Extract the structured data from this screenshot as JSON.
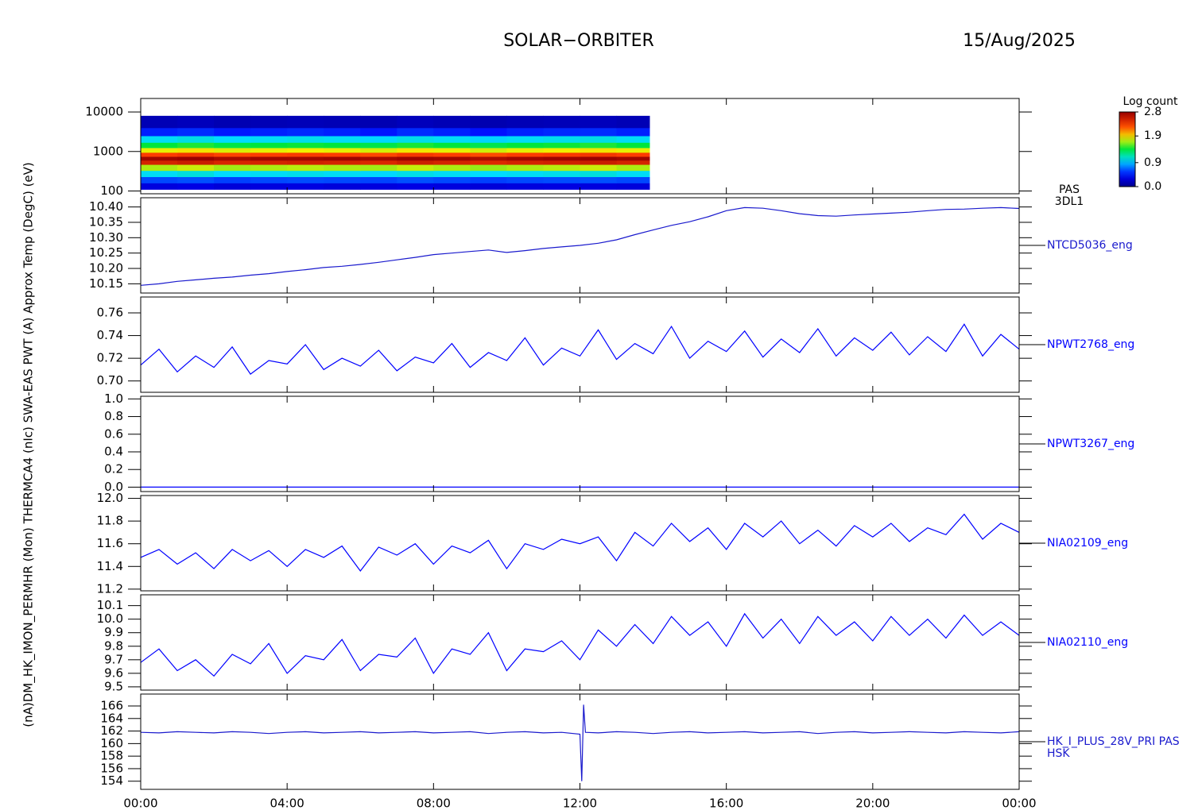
{
  "header": {
    "title": "SOLAR−ORBITER",
    "date": "15/Aug/2025"
  },
  "ylabel": "(nA)DM_HK_IMON_PERMHR (Mon) THERMCA4 (nIc) SWA-EAS PWT (A) Approx Temp (DegC) (eV)",
  "xlim": [
    0,
    24
  ],
  "xticks": [
    {
      "value": 0,
      "label": "00:00"
    },
    {
      "value": 4,
      "label": "04:00"
    },
    {
      "value": 8,
      "label": "08:00"
    },
    {
      "value": 12,
      "label": "12:00"
    },
    {
      "value": 16,
      "label": "16:00"
    },
    {
      "value": 20,
      "label": "20:00"
    },
    {
      "value": 24,
      "label": "00:00"
    }
  ],
  "x": [
    0,
    0.5,
    1,
    1.5,
    2,
    2.5,
    3,
    3.5,
    4,
    4.5,
    5,
    5.5,
    6,
    6.5,
    7,
    7.5,
    8,
    8.5,
    9,
    9.5,
    10,
    10.5,
    11,
    11.5,
    12,
    12.5,
    13,
    13.5,
    14,
    14.5,
    15,
    15.5,
    16,
    16.5,
    17,
    17.5,
    18,
    18.5,
    19,
    19.5,
    20,
    20.5,
    21,
    21.5,
    22,
    22.5,
    23,
    23.5,
    24
  ],
  "chart_data": [
    {
      "type": "heatmap",
      "labels": [
        "PAS",
        "3DL1"
      ],
      "log_y": true,
      "ylim": [
        85,
        22000
      ],
      "yticks": [
        100,
        1000,
        10000
      ],
      "x_bins": [
        0,
        1,
        2,
        3,
        4,
        5,
        6,
        7,
        8,
        9,
        10,
        11,
        12,
        13,
        13.9
      ],
      "y_bins": [
        110,
        160,
        230,
        330,
        470,
        600,
        750,
        950,
        1250,
        1700,
        2500,
        4000,
        8000
      ],
      "z": [
        [
          0.3,
          0.32,
          0.28,
          0.3,
          0.31,
          0.29,
          0.3,
          0.32,
          0.3,
          0.28,
          0.3,
          0.31,
          0.3,
          0.29
        ],
        [
          0.6,
          0.62,
          0.58,
          0.6,
          0.61,
          0.6,
          0.59,
          0.62,
          0.6,
          0.58,
          0.6,
          0.61,
          0.62,
          0.6
        ],
        [
          1.0,
          1.05,
          0.98,
          1.0,
          1.02,
          1.0,
          0.97,
          1.03,
          1.0,
          0.98,
          1.0,
          1.02,
          1.05,
          1.0
        ],
        [
          1.7,
          1.75,
          1.68,
          1.7,
          1.72,
          1.7,
          1.68,
          1.74,
          1.7,
          1.66,
          1.7,
          1.72,
          1.75,
          1.7
        ],
        [
          2.5,
          2.55,
          2.48,
          2.5,
          2.52,
          2.5,
          2.47,
          2.54,
          2.5,
          2.46,
          2.5,
          2.52,
          2.55,
          2.5
        ],
        [
          2.75,
          2.78,
          2.72,
          2.75,
          2.74,
          2.76,
          2.73,
          2.77,
          2.75,
          2.7,
          2.74,
          2.76,
          2.78,
          2.75
        ],
        [
          2.3,
          2.35,
          2.28,
          2.3,
          2.32,
          2.3,
          2.27,
          2.34,
          2.3,
          2.26,
          2.3,
          2.32,
          2.35,
          2.3
        ],
        [
          1.8,
          1.85,
          1.78,
          1.8,
          1.82,
          1.8,
          1.77,
          1.84,
          1.8,
          1.76,
          1.8,
          1.82,
          1.85,
          1.8
        ],
        [
          1.4,
          1.45,
          1.38,
          1.4,
          1.42,
          1.4,
          1.37,
          1.44,
          1.4,
          1.36,
          1.4,
          1.42,
          1.45,
          1.4
        ],
        [
          1.0,
          1.04,
          0.98,
          1.0,
          1.02,
          1.0,
          0.97,
          1.03,
          1.0,
          0.96,
          1.0,
          1.02,
          1.04,
          1.0
        ],
        [
          0.5,
          0.53,
          0.48,
          0.5,
          0.52,
          0.5,
          0.47,
          0.53,
          0.5,
          0.46,
          0.5,
          0.52,
          0.53,
          0.5
        ],
        [
          0.15,
          0.17,
          0.14,
          0.15,
          0.16,
          0.15,
          0.14,
          0.17,
          0.15,
          0.13,
          0.15,
          0.16,
          0.17,
          0.15
        ]
      ],
      "clim": [
        0,
        2.8
      ],
      "clabel": "Log count",
      "cticks": [
        {
          "value": 0,
          "label": "0.0"
        },
        0.9,
        1.9,
        2.8
      ]
    },
    {
      "type": "line",
      "ylim": [
        10.12,
        10.43
      ],
      "yticks": [
        10.15,
        {
          "value": 10.2,
          "label": "10.20"
        },
        10.25,
        {
          "value": 10.3,
          "label": "10.30"
        },
        10.35,
        {
          "value": 10.4,
          "label": "10.40"
        }
      ],
      "series": [
        {
          "name": "NTCD5036_eng",
          "color": "#1a1acd",
          "values": [
            10.145,
            10.15,
            10.158,
            10.163,
            10.168,
            10.172,
            10.178,
            10.183,
            10.19,
            10.196,
            10.203,
            10.207,
            10.213,
            10.22,
            10.228,
            10.236,
            10.245,
            10.25,
            10.255,
            10.26,
            10.252,
            10.258,
            10.265,
            10.27,
            10.275,
            10.282,
            10.293,
            10.31,
            10.325,
            10.34,
            10.352,
            10.368,
            10.388,
            10.398,
            10.396,
            10.388,
            10.378,
            10.372,
            10.37,
            10.374,
            10.377,
            10.38,
            10.383,
            10.388,
            10.392,
            10.393,
            10.396,
            10.398,
            10.395
          ]
        }
      ]
    },
    {
      "type": "line",
      "ylim": [
        0.69,
        0.774
      ],
      "yticks": [
        {
          "value": 0.7,
          "label": "0.70"
        },
        0.72,
        0.74,
        0.76
      ],
      "series": [
        {
          "name": "NPWT2768_eng",
          "color": "#0000ff",
          "values": [
            0.714,
            0.728,
            0.708,
            0.722,
            0.712,
            0.73,
            0.706,
            0.718,
            0.715,
            0.732,
            0.71,
            0.72,
            0.713,
            0.727,
            0.709,
            0.721,
            0.716,
            0.733,
            0.712,
            0.725,
            0.718,
            0.738,
            0.714,
            0.729,
            0.722,
            0.745,
            0.719,
            0.733,
            0.724,
            0.748,
            0.72,
            0.735,
            0.726,
            0.744,
            0.721,
            0.737,
            0.725,
            0.746,
            0.722,
            0.738,
            0.727,
            0.743,
            0.723,
            0.739,
            0.726,
            0.75,
            0.722,
            0.741,
            0.728
          ]
        }
      ]
    },
    {
      "type": "line",
      "ylim": [
        -0.05,
        1.03
      ],
      "yticks": [
        {
          "value": 0,
          "label": "0.0"
        },
        0.2,
        0.4,
        0.6,
        0.8,
        {
          "value": 1,
          "label": "1.0"
        }
      ],
      "series": [
        {
          "name": "NPWT3267_eng",
          "color": "#0000ff",
          "values": [
            0,
            0,
            0,
            0,
            0,
            0,
            0,
            0,
            0,
            0,
            0,
            0,
            0,
            0,
            0,
            0,
            0,
            0,
            0,
            0,
            0,
            0,
            0,
            0,
            0,
            0,
            0,
            0,
            0,
            0,
            0,
            0,
            0,
            0,
            0,
            0,
            0,
            0,
            0,
            0,
            0,
            0,
            0,
            0,
            0,
            0,
            0,
            0,
            0
          ]
        }
      ]
    },
    {
      "type": "line",
      "ylim": [
        11.185,
        12.025
      ],
      "yticks": [
        11.2,
        11.4,
        11.6,
        11.8,
        {
          "value": 12,
          "label": "12.0"
        }
      ],
      "series": [
        {
          "name": "NIA02109_eng",
          "color": "#0000ff",
          "values": [
            11.48,
            11.55,
            11.42,
            11.52,
            11.38,
            11.55,
            11.45,
            11.54,
            11.4,
            11.55,
            11.48,
            11.58,
            11.36,
            11.57,
            11.5,
            11.6,
            11.42,
            11.58,
            11.52,
            11.63,
            11.38,
            11.6,
            11.55,
            11.64,
            11.6,
            11.66,
            11.45,
            11.7,
            11.58,
            11.78,
            11.62,
            11.74,
            11.55,
            11.78,
            11.66,
            11.8,
            11.6,
            11.72,
            11.58,
            11.76,
            11.66,
            11.78,
            11.62,
            11.74,
            11.68,
            11.86,
            11.64,
            11.78,
            11.7
          ]
        }
      ]
    },
    {
      "type": "line",
      "ylim": [
        9.476,
        10.18
      ],
      "yticks": [
        9.5,
        9.6,
        9.7,
        9.8,
        9.9,
        {
          "value": 10,
          "label": "10.0"
        },
        10.1
      ],
      "series": [
        {
          "name": "NIA02110_eng",
          "color": "#0000ff",
          "values": [
            9.68,
            9.78,
            9.62,
            9.7,
            9.58,
            9.74,
            9.67,
            9.82,
            9.6,
            9.73,
            9.7,
            9.85,
            9.62,
            9.74,
            9.72,
            9.86,
            9.6,
            9.78,
            9.74,
            9.9,
            9.62,
            9.78,
            9.76,
            9.84,
            9.7,
            9.92,
            9.8,
            9.96,
            9.82,
            10.02,
            9.88,
            9.98,
            9.8,
            10.04,
            9.86,
            10,
            9.82,
            10.02,
            9.88,
            9.98,
            9.84,
            10.02,
            9.88,
            10,
            9.86,
            10.03,
            9.88,
            9.98,
            9.88
          ]
        }
      ]
    },
    {
      "type": "line",
      "ylim": [
        152.7,
        167.9
      ],
      "yticks": [
        154,
        156,
        158,
        160,
        162,
        164,
        166
      ],
      "labels": [
        "HSK"
      ],
      "x": [
        0,
        0.5,
        1,
        1.5,
        2,
        2.5,
        3,
        3.5,
        4,
        4.5,
        5,
        5.5,
        6,
        6.5,
        7,
        7.5,
        8,
        8.5,
        9,
        9.5,
        10,
        10.5,
        11,
        11.5,
        12,
        12.05,
        12.1,
        12.15,
        12.5,
        13,
        13.5,
        14,
        14.5,
        15,
        15.5,
        16,
        16.5,
        17,
        17.5,
        18,
        18.5,
        19,
        19.5,
        20,
        20.5,
        21,
        21.5,
        22,
        22.5,
        23,
        23.5,
        24
      ],
      "series": [
        {
          "name": "HK_I_PLUS_28V_PRI PAS",
          "color": "#1a1acd",
          "values": [
            161.8,
            161.7,
            161.9,
            161.8,
            161.7,
            161.9,
            161.8,
            161.6,
            161.8,
            161.9,
            161.7,
            161.8,
            161.9,
            161.7,
            161.8,
            161.9,
            161.7,
            161.8,
            161.9,
            161.6,
            161.8,
            161.9,
            161.7,
            161.8,
            161.5,
            154,
            166.2,
            161.8,
            161.7,
            161.9,
            161.8,
            161.6,
            161.8,
            161.9,
            161.7,
            161.8,
            161.9,
            161.7,
            161.8,
            161.9,
            161.6,
            161.8,
            161.9,
            161.7,
            161.8,
            161.9,
            161.8,
            161.7,
            161.9,
            161.8,
            161.7,
            161.9
          ]
        }
      ]
    }
  ]
}
